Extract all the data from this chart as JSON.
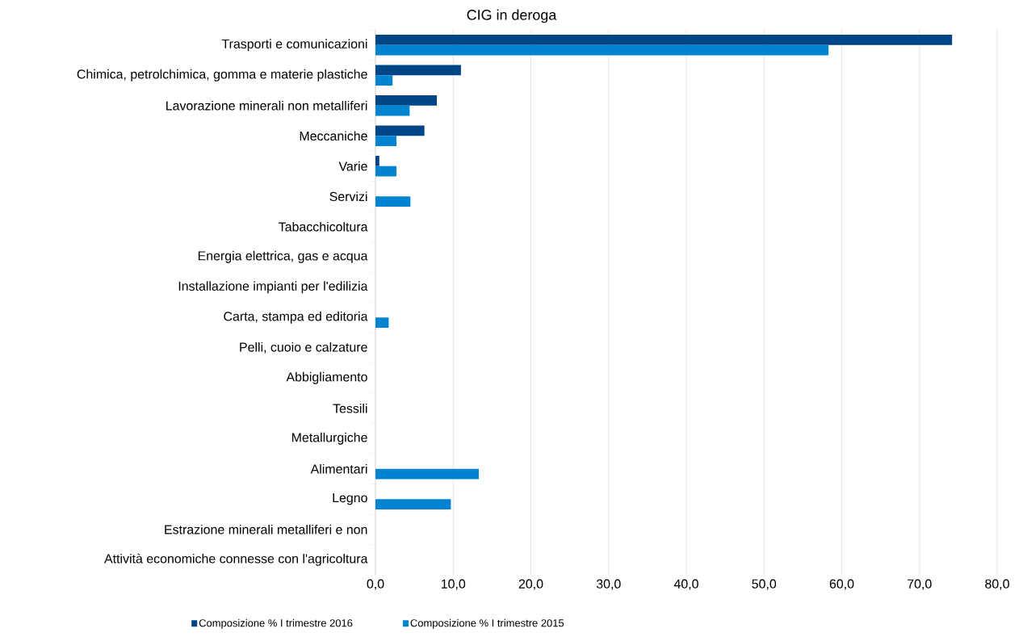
{
  "chart_data": {
    "type": "bar",
    "orientation": "horizontal",
    "title": "CIG in deroga",
    "categories": [
      "Trasporti e comunicazioni",
      "Chimica, petrolchimica, gomma e materie plastiche",
      "Lavorazione minerali non metalliferi",
      "Meccaniche",
      "Varie",
      "Servizi",
      "Tabacchicoltura",
      "Energia elettrica, gas e acqua",
      "Installazione impianti per l'edilizia",
      "Carta, stampa ed editoria",
      "Pelli, cuoio e calzature",
      "Abbigliamento",
      "Tessili",
      "Metallurgiche",
      "Alimentari",
      "Legno",
      "Estrazione minerali metalliferi e non",
      "Attività economiche connesse con l'agricoltura"
    ],
    "series": [
      {
        "name": "Composizione % I trimestre 2016",
        "color": "#004586",
        "values": [
          74.2,
          11.0,
          7.9,
          6.3,
          0.5,
          0,
          0,
          0,
          0,
          0,
          0,
          0,
          0,
          0,
          0,
          0,
          0,
          0
        ]
      },
      {
        "name": "Composizione % I trimestre 2015",
        "color": "#0084d1",
        "values": [
          58.3,
          2.2,
          4.4,
          2.7,
          2.7,
          4.5,
          0,
          0,
          0,
          1.7,
          0,
          0,
          0,
          0,
          13.3,
          9.7,
          0,
          0
        ]
      }
    ],
    "xlim": [
      0,
      80
    ],
    "xticks": [
      {
        "value": 0,
        "label": "0,0"
      },
      {
        "value": 10,
        "label": "10,0"
      },
      {
        "value": 20,
        "label": "20,0"
      },
      {
        "value": 30,
        "label": "30,0"
      },
      {
        "value": 40,
        "label": "40,0"
      },
      {
        "value": 50,
        "label": "50,0"
      },
      {
        "value": 60,
        "label": "60,0"
      },
      {
        "value": 70,
        "label": "70,0"
      },
      {
        "value": 80,
        "label": "80,0"
      }
    ],
    "grid": "x",
    "legend": "bottom"
  }
}
